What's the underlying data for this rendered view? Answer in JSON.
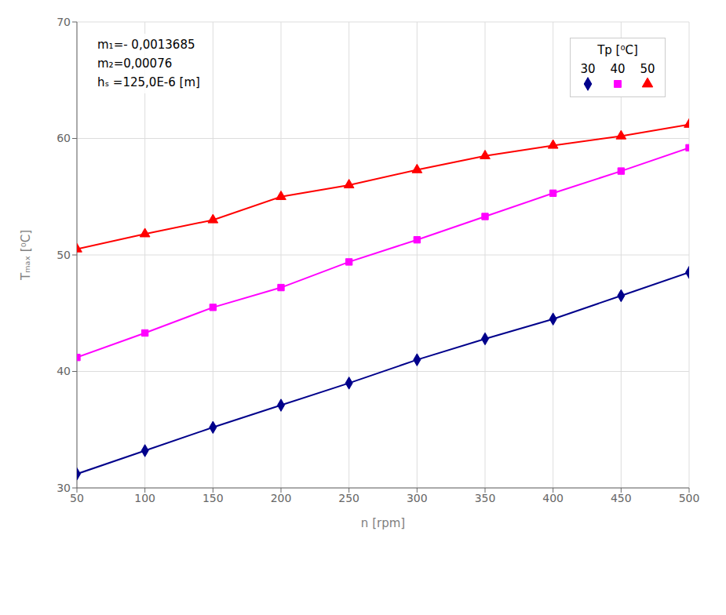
{
  "chart_data": {
    "type": "line",
    "x_label": "n [rpm]",
    "y_label": "Tₘₐₓ [⁰C]",
    "legend_title": "Tp [⁰C]",
    "annotations": [
      "m₁=- 0,0013685",
      "m₂=0,00076",
      "hₛ =125,0E-6 [m]"
    ],
    "x": [
      50,
      100,
      150,
      200,
      250,
      300,
      350,
      400,
      450,
      500
    ],
    "series": [
      {
        "name": "30",
        "color": "#00008B",
        "marker": "diamond",
        "values": [
          31.2,
          33.2,
          35.2,
          37.1,
          39.0,
          41.0,
          42.8,
          44.5,
          46.5,
          48.5
        ]
      },
      {
        "name": "40",
        "color": "#FF00FF",
        "marker": "square",
        "values": [
          41.2,
          43.3,
          45.5,
          47.2,
          49.4,
          51.3,
          53.3,
          55.3,
          57.2,
          59.2
        ]
      },
      {
        "name": "50",
        "color": "#FF0000",
        "marker": "triangle",
        "values": [
          50.5,
          51.8,
          53.0,
          55.0,
          56.0,
          57.3,
          58.5,
          59.4,
          60.2,
          61.2
        ]
      }
    ],
    "xlim": [
      50,
      500
    ],
    "ylim": [
      30,
      70
    ],
    "xticks": [
      50,
      100,
      150,
      200,
      250,
      300,
      350,
      400,
      450,
      500
    ],
    "yticks": [
      30,
      40,
      50,
      60,
      70
    ],
    "grid": true,
    "legend": "upper right"
  }
}
